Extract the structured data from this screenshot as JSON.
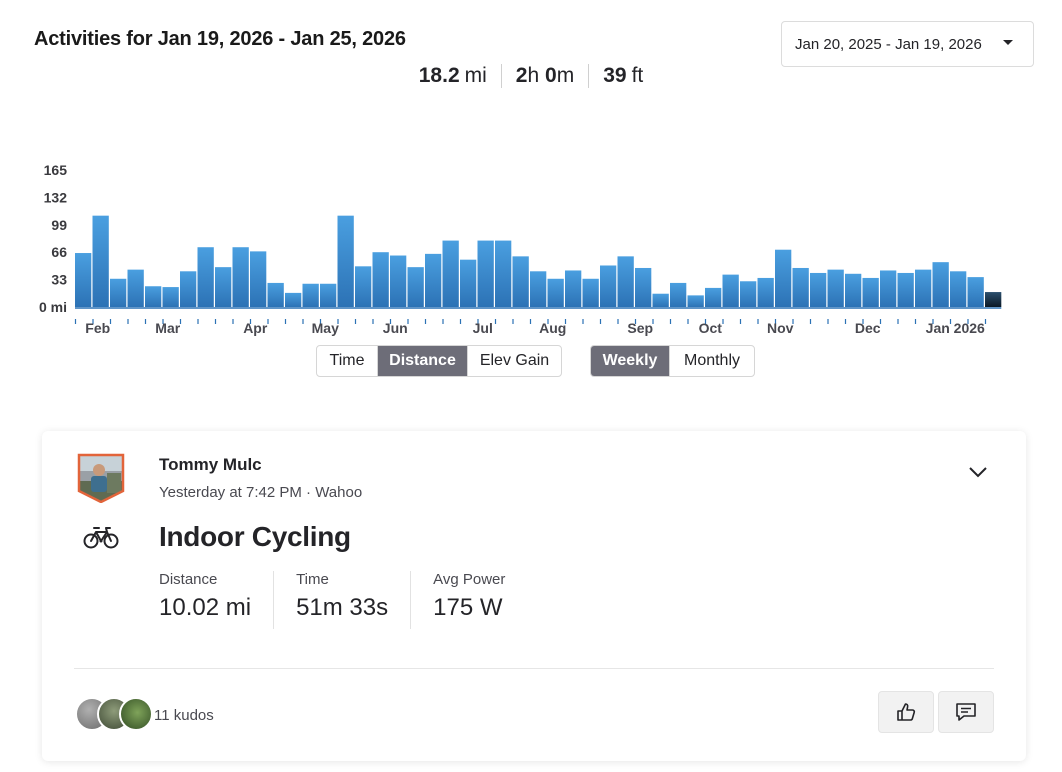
{
  "header": {
    "title": "Activities for Jan 19, 2026 - Jan 25, 2026",
    "date_range": "Jan 20, 2025 - Jan 19, 2026"
  },
  "totals": [
    {
      "value": "18.2",
      "unit": "mi"
    },
    {
      "h": "2",
      "h_unit": "h",
      "m": "0",
      "m_unit": "m"
    },
    {
      "value": "39",
      "unit": "ft"
    }
  ],
  "chart_data": {
    "type": "bar",
    "ylabel": "",
    "y_ticks": [
      "165",
      "132",
      "99",
      "66",
      "33",
      "0 mi"
    ],
    "y_tick_values": [
      165,
      132,
      99,
      66,
      33,
      0
    ],
    "ylim": [
      0,
      165
    ],
    "x_labels": [
      "Feb",
      "Mar",
      "Apr",
      "May",
      "Jun",
      "Jul",
      "Aug",
      "Sep",
      "Oct",
      "Nov",
      "Dec",
      "Jan 2026"
    ],
    "x_label_week_index": [
      1.3,
      5.3,
      10.3,
      14.3,
      18.3,
      23.3,
      27.3,
      32.3,
      36.3,
      40.3,
      45.3,
      50.3
    ],
    "values": [
      65,
      110,
      34,
      45,
      25,
      24,
      43,
      72,
      48,
      72,
      67,
      29,
      17,
      28,
      28,
      110,
      49,
      66,
      62,
      48,
      64,
      80,
      57,
      80,
      80,
      61,
      43,
      34,
      44,
      34,
      50,
      61,
      47,
      16,
      29,
      14,
      23,
      39,
      31,
      35,
      69,
      47,
      41,
      45,
      40,
      35,
      44,
      41,
      45,
      54,
      43,
      36,
      18
    ],
    "highlighted_index": 52,
    "colors": {
      "bar_top": "#4a9fe0",
      "bar_bottom": "#2c72b5",
      "highlight_top": "#2b4f6e",
      "highlight_bottom": "#0a1826",
      "axis": "#2c72b5"
    },
    "grid": false
  },
  "controls": {
    "metric": [
      {
        "label": "Time",
        "active": false
      },
      {
        "label": "Distance",
        "active": true
      },
      {
        "label": "Elev Gain",
        "active": false
      }
    ],
    "period": [
      {
        "label": "Weekly",
        "active": true
      },
      {
        "label": "Monthly",
        "active": false
      }
    ]
  },
  "activity": {
    "athlete_name": "Tommy Mulc",
    "meta": "Yesterday at 7:42 PM · Wahoo",
    "sport_icon": "bike-icon",
    "title": "Indoor Cycling",
    "stats": [
      {
        "label": "Distance",
        "value": "10.02 mi"
      },
      {
        "label": "Time",
        "value": "51m 33s"
      },
      {
        "label": "Avg Power",
        "value": "175 W"
      }
    ],
    "kudos_text": "11 kudos",
    "icons": {
      "expand": "chevron-down-icon",
      "kudo": "thumbs-up-icon",
      "comment": "comment-icon"
    }
  }
}
